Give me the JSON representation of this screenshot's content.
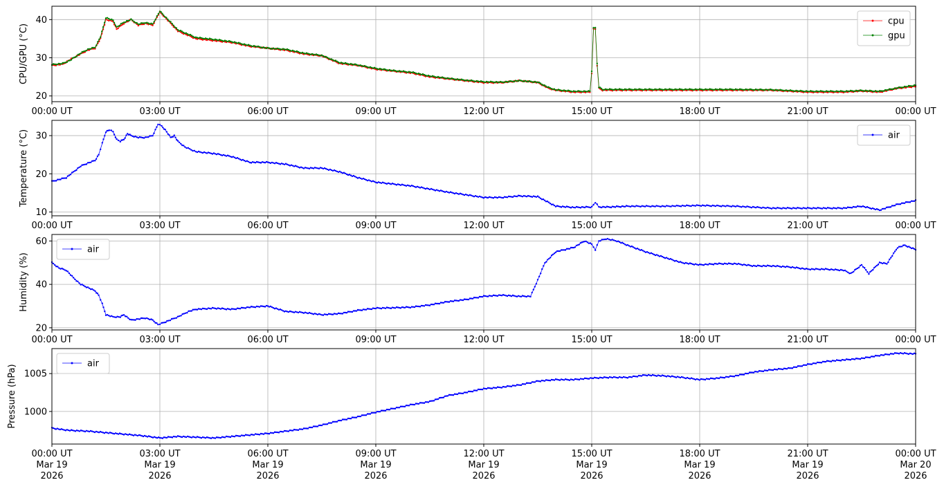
{
  "colors": {
    "cpu": "#ff0000",
    "gpu": "#008000",
    "air": "#0000ff",
    "grid": "#b0b0b0",
    "axes": "#000000"
  },
  "chart_data": [
    {
      "type": "line",
      "ylabel": "CPU/GPU (°C)",
      "ylim": [
        18.5,
        43.5
      ],
      "yticks": [
        20,
        30,
        40
      ],
      "x_unit": "hours since 00:00 UT Mar 19 2026",
      "xlim": [
        0,
        24
      ],
      "xticks": [
        0,
        3,
        6,
        9,
        12,
        15,
        18,
        21,
        24
      ],
      "xtick_labels": [
        "00:00 UT",
        "03:00 UT",
        "06:00 UT",
        "09:00 UT",
        "12:00 UT",
        "15:00 UT",
        "18:00 UT",
        "21:00 UT",
        "00:00 UT"
      ],
      "grid": true,
      "legend_position": "top-right",
      "series": [
        {
          "name": "cpu",
          "color": "#ff0000",
          "x": [
            0,
            0.3,
            0.5,
            0.8,
            1.0,
            1.2,
            1.35,
            1.5,
            1.7,
            1.8,
            2.0,
            2.2,
            2.4,
            2.6,
            2.8,
            3.0,
            3.1,
            3.3,
            3.5,
            4.0,
            4.5,
            5.0,
            5.5,
            6.0,
            6.5,
            7.0,
            7.5,
            8.0,
            8.5,
            9.0,
            9.5,
            10.0,
            10.5,
            11.0,
            11.5,
            12.0,
            12.5,
            13.0,
            13.5,
            13.8,
            14.0,
            14.5,
            14.95,
            15.0,
            15.05,
            15.1,
            15.15,
            15.2,
            15.3,
            15.5,
            16.0,
            17.0,
            18.0,
            19.0,
            20.0,
            21.0,
            22.0,
            22.5,
            23.0,
            23.5,
            24.0
          ],
          "y": [
            28,
            28.3,
            29.5,
            31,
            32,
            32.5,
            35,
            40,
            39.5,
            37.5,
            39,
            40,
            38.5,
            39,
            38.5,
            42,
            41,
            39,
            37,
            35,
            34.5,
            34,
            33,
            32.5,
            32,
            31,
            30.5,
            28.5,
            28,
            27,
            26.5,
            26,
            25,
            24.5,
            24,
            23.5,
            23.5,
            24,
            23.5,
            22,
            21.5,
            21,
            21,
            26,
            37.5,
            37.5,
            28,
            22,
            21.5,
            21.5,
            21.5,
            21.5,
            21.5,
            21.5,
            21.5,
            21,
            21,
            21.3,
            21,
            22,
            22.5
          ]
        },
        {
          "name": "gpu",
          "color": "#008000",
          "x": [
            0,
            0.3,
            0.5,
            0.8,
            1.0,
            1.2,
            1.35,
            1.5,
            1.7,
            1.8,
            2.0,
            2.2,
            2.4,
            2.6,
            2.8,
            3.0,
            3.1,
            3.3,
            3.5,
            4.0,
            4.5,
            5.0,
            5.5,
            6.0,
            6.5,
            7.0,
            7.5,
            8.0,
            8.5,
            9.0,
            9.5,
            10.0,
            10.5,
            11.0,
            11.5,
            12.0,
            12.5,
            13.0,
            13.5,
            13.8,
            14.0,
            14.5,
            14.95,
            15.0,
            15.05,
            15.1,
            15.15,
            15.2,
            15.3,
            15.5,
            16.0,
            17.0,
            18.0,
            19.0,
            20.0,
            21.0,
            22.0,
            22.5,
            23.0,
            23.5,
            24.0
          ],
          "y": [
            28.2,
            28.5,
            29.3,
            31.2,
            32.2,
            32.7,
            35.5,
            40.5,
            39.8,
            38,
            39.3,
            40,
            38.8,
            39.2,
            38.8,
            42.2,
            41.2,
            39.3,
            37.3,
            35.3,
            34.8,
            34.2,
            33.2,
            32.5,
            32.2,
            31.2,
            30.6,
            28.7,
            28.1,
            27.2,
            26.6,
            26.2,
            25.2,
            24.6,
            24.1,
            23.7,
            23.6,
            24,
            23.6,
            22.2,
            21.6,
            21.2,
            21.2,
            26.5,
            38,
            37.8,
            28.5,
            22.3,
            21.7,
            21.7,
            21.7,
            21.7,
            21.7,
            21.7,
            21.6,
            21.2,
            21.2,
            21.4,
            21.2,
            22.1,
            22.8
          ]
        }
      ]
    },
    {
      "type": "line",
      "ylabel": "Temperature (°C)",
      "ylim": [
        9,
        34
      ],
      "yticks": [
        10,
        20,
        30
      ],
      "x_unit": "hours since 00:00 UT Mar 19 2026",
      "xlim": [
        0,
        24
      ],
      "xticks": [
        0,
        3,
        6,
        9,
        12,
        15,
        18,
        21,
        24
      ],
      "xtick_labels": [
        "00:00 UT",
        "03:00 UT",
        "06:00 UT",
        "09:00 UT",
        "12:00 UT",
        "15:00 UT",
        "18:00 UT",
        "21:00 UT",
        "00:00 UT"
      ],
      "grid": true,
      "legend_position": "top-right",
      "series": [
        {
          "name": "air",
          "color": "#0000ff",
          "x": [
            0,
            0.2,
            0.4,
            0.6,
            0.8,
            1.0,
            1.2,
            1.3,
            1.4,
            1.5,
            1.6,
            1.7,
            1.8,
            1.9,
            2.0,
            2.1,
            2.2,
            2.4,
            2.6,
            2.8,
            2.95,
            3.05,
            3.15,
            3.3,
            3.4,
            3.5,
            3.7,
            4.0,
            4.5,
            5.0,
            5.5,
            6.0,
            6.5,
            7.0,
            7.5,
            8.0,
            8.5,
            9.0,
            9.5,
            10.0,
            10.5,
            11.0,
            11.5,
            12.0,
            12.5,
            13.0,
            13.5,
            14.0,
            14.5,
            15.0,
            15.1,
            15.2,
            15.5,
            16.0,
            17.0,
            18.0,
            19.0,
            20.0,
            21.0,
            22.0,
            22.5,
            23.0,
            23.5,
            24.0
          ],
          "y": [
            18,
            18.5,
            19,
            20.5,
            22,
            22.8,
            23.5,
            25,
            28,
            31,
            31.5,
            31,
            29,
            28.5,
            29,
            30.5,
            30,
            29.5,
            29.5,
            30,
            33,
            32.5,
            31.5,
            29.5,
            30,
            28.5,
            27,
            25.8,
            25.3,
            24.5,
            23,
            23,
            22.5,
            21.5,
            21.5,
            20.5,
            19,
            17.8,
            17.3,
            16.8,
            16,
            15.2,
            14.5,
            13.8,
            13.8,
            14.2,
            14,
            11.5,
            11.2,
            11.3,
            12.5,
            11.3,
            11.3,
            11.5,
            11.5,
            11.7,
            11.5,
            11,
            11,
            11,
            11.5,
            10.5,
            12,
            13
          ]
        }
      ]
    },
    {
      "type": "line",
      "ylabel": "Humidity (%)",
      "ylim": [
        19,
        63
      ],
      "yticks": [
        20,
        40,
        60
      ],
      "x_unit": "hours since 00:00 UT Mar 19 2026",
      "xlim": [
        0,
        24
      ],
      "xticks": [
        0,
        3,
        6,
        9,
        12,
        15,
        18,
        21,
        24
      ],
      "xtick_labels": [
        "00:00 UT",
        "03:00 UT",
        "06:00 UT",
        "09:00 UT",
        "12:00 UT",
        "15:00 UT",
        "18:00 UT",
        "21:00 UT",
        "00:00 UT"
      ],
      "grid": true,
      "legend_position": "top-left",
      "series": [
        {
          "name": "air",
          "color": "#0000ff",
          "x": [
            0,
            0.2,
            0.4,
            0.6,
            0.8,
            1.0,
            1.2,
            1.3,
            1.4,
            1.5,
            1.7,
            1.9,
            2.0,
            2.2,
            2.4,
            2.6,
            2.8,
            2.95,
            3.05,
            3.2,
            3.5,
            3.8,
            4.0,
            4.5,
            5.0,
            5.5,
            6.0,
            6.5,
            7.0,
            7.5,
            8.0,
            8.5,
            9.0,
            9.5,
            10.0,
            10.5,
            11.0,
            11.5,
            12.0,
            12.5,
            13.0,
            13.3,
            13.5,
            13.7,
            14.0,
            14.5,
            14.8,
            15.0,
            15.1,
            15.2,
            15.4,
            15.7,
            16.0,
            16.5,
            17.0,
            17.5,
            18.0,
            18.5,
            19.0,
            19.5,
            20.0,
            20.5,
            21.0,
            21.5,
            22.0,
            22.2,
            22.5,
            22.7,
            23.0,
            23.2,
            23.5,
            23.7,
            24.0
          ],
          "y": [
            50,
            47.5,
            46.5,
            43,
            40,
            38.5,
            37,
            35,
            31,
            26,
            25,
            25,
            26,
            23.5,
            24,
            24.5,
            23.5,
            21.5,
            22,
            23,
            25,
            27.5,
            28.5,
            29,
            28.5,
            29.5,
            30,
            27.5,
            27,
            26,
            26.5,
            28,
            29,
            29.2,
            29.5,
            30.5,
            32,
            33,
            34.5,
            35,
            34.5,
            34.5,
            42,
            50,
            55,
            57,
            60,
            58.5,
            56,
            60,
            61,
            60,
            58,
            55,
            52.5,
            50,
            49,
            49.5,
            49.5,
            48.5,
            48.5,
            48,
            47,
            47,
            46.5,
            45,
            49,
            45,
            50,
            49.5,
            57,
            58,
            56
          ]
        }
      ]
    },
    {
      "type": "line",
      "ylabel": "Pressure (hPa)",
      "ylim": [
        995.7,
        1008.3
      ],
      "yticks": [
        1000,
        1005
      ],
      "x_unit": "hours since 00:00 UT Mar 19 2026",
      "xlim": [
        0,
        24
      ],
      "xticks": [
        0,
        3,
        6,
        9,
        12,
        15,
        18,
        21,
        24
      ],
      "xtick_labels": [
        "00:00 UT\nMar 19\n2026",
        "03:00 UT\nMar 19\n2026",
        "06:00 UT\nMar 19\n2026",
        "09:00 UT\nMar 19\n2026",
        "12:00 UT\nMar 19\n2026",
        "15:00 UT\nMar 19\n2026",
        "18:00 UT\nMar 19\n2026",
        "21:00 UT\nMar 19\n2026",
        "00:00 UT\nMar 20\n2026"
      ],
      "grid": true,
      "legend_position": "top-left",
      "series": [
        {
          "name": "air",
          "color": "#0000ff",
          "x": [
            0,
            0.3,
            0.5,
            1.0,
            1.5,
            2.0,
            2.5,
            3.0,
            3.5,
            4.0,
            4.5,
            5.0,
            5.5,
            6.0,
            6.5,
            7.0,
            7.5,
            8.0,
            8.5,
            9.0,
            9.5,
            10.0,
            10.5,
            11.0,
            11.5,
            12.0,
            12.5,
            13.0,
            13.5,
            14.0,
            14.5,
            15.0,
            15.5,
            16.0,
            16.5,
            17.0,
            17.5,
            18.0,
            18.5,
            19.0,
            19.5,
            20.0,
            20.5,
            21.0,
            21.5,
            22.0,
            22.5,
            23.0,
            23.5,
            24.0
          ],
          "y": [
            997.8,
            997.6,
            997.5,
            997.4,
            997.2,
            997.0,
            996.8,
            996.5,
            996.7,
            996.6,
            996.5,
            996.7,
            996.9,
            997.1,
            997.4,
            997.7,
            998.2,
            998.8,
            999.3,
            999.9,
            1000.4,
            1000.9,
            1001.3,
            1002.1,
            1002.5,
            1003.0,
            1003.2,
            1003.5,
            1004.0,
            1004.2,
            1004.2,
            1004.4,
            1004.5,
            1004.5,
            1004.8,
            1004.7,
            1004.5,
            1004.2,
            1004.4,
            1004.7,
            1005.2,
            1005.5,
            1005.7,
            1006.2,
            1006.6,
            1006.8,
            1007.0,
            1007.4,
            1007.7,
            1007.6
          ]
        }
      ]
    }
  ]
}
